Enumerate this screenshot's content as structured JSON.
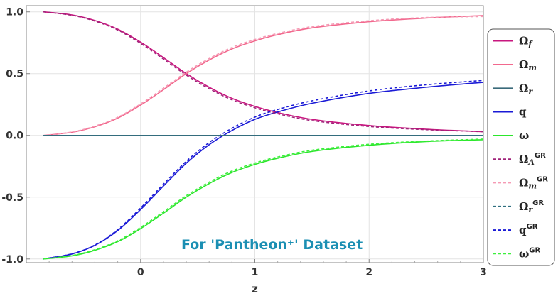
{
  "chart_data": {
    "type": "line",
    "xlabel": "z",
    "ylabel": "",
    "xlim": [
      -1,
      3
    ],
    "ylim": [
      -1.03,
      1.05
    ],
    "x_ticks": [
      0,
      1,
      2,
      3
    ],
    "x_tick_labels": [
      "0",
      "1",
      "2",
      "3"
    ],
    "y_ticks": [
      -1.0,
      -0.5,
      0.0,
      0.5,
      1.0
    ],
    "y_tick_labels": [
      "-1.0",
      "-0.5",
      "0.0",
      "0.5",
      "1.0"
    ],
    "grid": true,
    "legend_position": "right",
    "annotation": {
      "text": "For 'Pantheon⁺' Dataset",
      "color": "#1b8fb3"
    },
    "x": [
      -0.85,
      -0.6,
      -0.4,
      -0.2,
      0,
      0.2,
      0.4,
      0.6,
      0.8,
      1.0,
      1.2,
      1.5,
      2.0,
      2.5,
      3.0
    ],
    "series": [
      {
        "name": "Ωf",
        "base": "Ω",
        "sub": "f",
        "sup": "",
        "color": "#c8177f",
        "dash": false,
        "values": [
          1.0,
          0.975,
          0.93,
          0.86,
          0.755,
          0.63,
          0.5,
          0.39,
          0.3,
          0.235,
          0.185,
          0.13,
          0.08,
          0.05,
          0.03
        ]
      },
      {
        "name": "Ωm",
        "base": "Ω",
        "sub": "m",
        "sup": "",
        "color": "#f2698e",
        "dash": false,
        "values": [
          0.0,
          0.025,
          0.07,
          0.14,
          0.245,
          0.37,
          0.5,
          0.61,
          0.7,
          0.765,
          0.815,
          0.87,
          0.92,
          0.95,
          0.97
        ]
      },
      {
        "name": "Ωr",
        "base": "Ω",
        "sub": "r",
        "sup": "",
        "color": "#3a6a7a",
        "dash": false,
        "values": [
          0,
          0,
          0,
          0,
          0,
          0,
          0,
          0,
          0,
          0,
          0,
          0,
          0,
          0,
          0
        ]
      },
      {
        "name": "q",
        "base": "q",
        "sub": "",
        "sup": "",
        "color": "#1a1ad6",
        "dash": false,
        "values": [
          -1.0,
          -0.96,
          -0.89,
          -0.77,
          -0.6,
          -0.41,
          -0.225,
          -0.075,
          0.04,
          0.13,
          0.19,
          0.26,
          0.34,
          0.39,
          0.43
        ]
      },
      {
        "name": "ω",
        "base": "ω",
        "sub": "",
        "sup": "",
        "color": "#2ce62c",
        "dash": false,
        "values": [
          -1.0,
          -0.975,
          -0.93,
          -0.86,
          -0.755,
          -0.63,
          -0.5,
          -0.39,
          -0.3,
          -0.235,
          -0.185,
          -0.13,
          -0.08,
          -0.05,
          -0.035
        ]
      },
      {
        "name": "ΩΛGR",
        "base": "Ω",
        "sub": "Λ",
        "sup": "GR",
        "color": "#a0227a",
        "dash": true,
        "values": [
          1.0,
          0.972,
          0.925,
          0.853,
          0.745,
          0.618,
          0.488,
          0.378,
          0.288,
          0.224,
          0.175,
          0.12,
          0.072,
          0.046,
          0.03
        ]
      },
      {
        "name": "ΩmGR",
        "base": "Ω",
        "sub": "m",
        "sup": "GR",
        "color": "#f59ab4",
        "dash": true,
        "values": [
          0.0,
          0.028,
          0.075,
          0.147,
          0.255,
          0.382,
          0.512,
          0.622,
          0.712,
          0.776,
          0.825,
          0.88,
          0.928,
          0.954,
          0.962
        ]
      },
      {
        "name": "ΩrGR",
        "base": "Ω",
        "sub": "r",
        "sup": "GR",
        "color": "#2f6f80",
        "dash": true,
        "values": [
          0,
          0,
          0,
          0,
          0,
          0,
          0,
          0,
          0,
          0,
          0,
          0,
          0,
          0,
          0
        ]
      },
      {
        "name": "qGR",
        "base": "q",
        "sub": "",
        "sup": "GR",
        "color": "#1a1ad6",
        "dash": true,
        "values": [
          -1.0,
          -0.958,
          -0.887,
          -0.763,
          -0.588,
          -0.395,
          -0.21,
          -0.058,
          0.058,
          0.148,
          0.21,
          0.28,
          0.36,
          0.41,
          0.445
        ]
      },
      {
        "name": "ωGR",
        "base": "ω",
        "sub": "",
        "sup": "GR",
        "color": "#3cf03c",
        "dash": true,
        "values": [
          -1.0,
          -0.972,
          -0.925,
          -0.853,
          -0.745,
          -0.618,
          -0.488,
          -0.378,
          -0.288,
          -0.224,
          -0.175,
          -0.12,
          -0.072,
          -0.046,
          -0.03
        ]
      }
    ]
  }
}
